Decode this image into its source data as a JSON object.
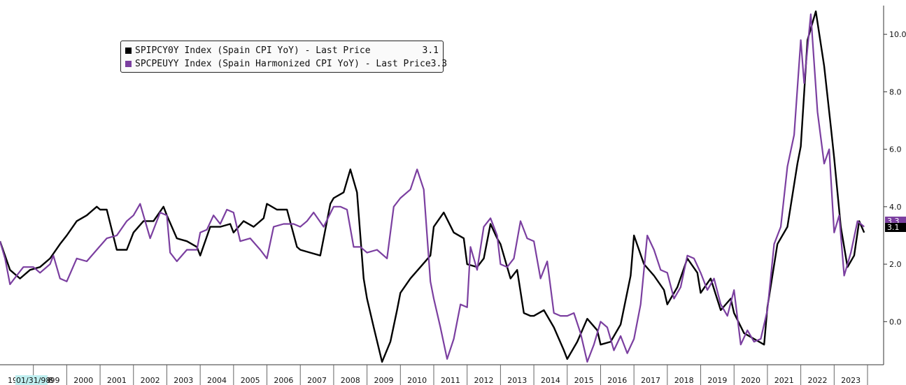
{
  "legend": {
    "entries": [
      {
        "label": "SPIPCY0Y Index (Spain CPI YoY) - Last Price",
        "value": "3.1",
        "color": "#000000"
      },
      {
        "label": "SPCPEUYY Index (Spain Harmonized CPI YoY) - Last Price",
        "value": "3.3",
        "color": "#7b3fa0"
      }
    ]
  },
  "badges": {
    "cpi": {
      "text": "3.1",
      "color": "#000000"
    },
    "hicp": {
      "text": "3.3",
      "color": "#7b3fa0"
    }
  },
  "axis": {
    "cursor_date": "01/31/98",
    "start_label_prefix": "19",
    "start_label_suffix": "8"
  },
  "chart_data": {
    "type": "line",
    "x_unit": "year",
    "xlim": [
      1998.0,
      2024.0
    ],
    "ylim": [
      -1.5,
      11.0
    ],
    "y_axis_side": "right",
    "y_ticks": [
      0.0,
      2.0,
      4.0,
      6.0,
      8.0,
      10.0
    ],
    "y_tick_labels": [
      "0.0",
      "2.0",
      "4.0",
      "6.0",
      "8.0",
      "10.0"
    ],
    "x_ticks": [
      1999,
      2000,
      2001,
      2002,
      2003,
      2004,
      2005,
      2006,
      2007,
      2008,
      2009,
      2010,
      2011,
      2012,
      2013,
      2014,
      2015,
      2016,
      2017,
      2018,
      2019,
      2020,
      2021,
      2022,
      2023
    ],
    "x_tick_labels": [
      "1999",
      "2000",
      "2001",
      "2002",
      "2003",
      "2004",
      "2005",
      "2006",
      "2007",
      "2008",
      "2009",
      "2010",
      "2011",
      "2012",
      "2013",
      "2014",
      "2015",
      "2016",
      "2017",
      "2018",
      "2019",
      "2020",
      "2021",
      "2022",
      "2023"
    ],
    "grid": false,
    "legend_position": "top-left",
    "series": [
      {
        "name": "SPIPCY0Y Index (Spain CPI YoY) - Last Price",
        "color": "#000000",
        "points": [
          [
            1998.0,
            2.8
          ],
          [
            1998.3,
            1.8
          ],
          [
            1998.6,
            1.5
          ],
          [
            1998.9,
            1.8
          ],
          [
            1999.2,
            1.9
          ],
          [
            1999.5,
            2.2
          ],
          [
            1999.8,
            2.7
          ],
          [
            2000.0,
            3.0
          ],
          [
            2000.3,
            3.5
          ],
          [
            2000.6,
            3.7
          ],
          [
            2000.9,
            4.0
          ],
          [
            2001.0,
            3.9
          ],
          [
            2001.2,
            3.9
          ],
          [
            2001.5,
            2.5
          ],
          [
            2001.8,
            2.5
          ],
          [
            2002.0,
            3.1
          ],
          [
            2002.3,
            3.5
          ],
          [
            2002.6,
            3.5
          ],
          [
            2002.9,
            4.0
          ],
          [
            2003.0,
            3.7
          ],
          [
            2003.3,
            2.9
          ],
          [
            2003.6,
            2.8
          ],
          [
            2003.9,
            2.6
          ],
          [
            2004.0,
            2.3
          ],
          [
            2004.3,
            3.3
          ],
          [
            2004.6,
            3.3
          ],
          [
            2004.9,
            3.4
          ],
          [
            2005.0,
            3.1
          ],
          [
            2005.3,
            3.5
          ],
          [
            2005.6,
            3.3
          ],
          [
            2005.9,
            3.6
          ],
          [
            2006.0,
            4.1
          ],
          [
            2006.3,
            3.9
          ],
          [
            2006.6,
            3.9
          ],
          [
            2006.9,
            2.6
          ],
          [
            2007.0,
            2.5
          ],
          [
            2007.3,
            2.4
          ],
          [
            2007.6,
            2.3
          ],
          [
            2007.9,
            4.1
          ],
          [
            2008.0,
            4.3
          ],
          [
            2008.3,
            4.5
          ],
          [
            2008.5,
            5.3
          ],
          [
            2008.7,
            4.5
          ],
          [
            2008.9,
            1.5
          ],
          [
            2009.0,
            0.8
          ],
          [
            2009.2,
            -0.2
          ],
          [
            2009.45,
            -1.4
          ],
          [
            2009.7,
            -0.7
          ],
          [
            2009.9,
            0.4
          ],
          [
            2010.0,
            1.0
          ],
          [
            2010.3,
            1.5
          ],
          [
            2010.6,
            1.9
          ],
          [
            2010.9,
            2.3
          ],
          [
            2011.0,
            3.3
          ],
          [
            2011.3,
            3.8
          ],
          [
            2011.6,
            3.1
          ],
          [
            2011.9,
            2.9
          ],
          [
            2012.0,
            2.0
          ],
          [
            2012.3,
            1.9
          ],
          [
            2012.5,
            2.2
          ],
          [
            2012.7,
            3.4
          ],
          [
            2012.9,
            2.9
          ],
          [
            2013.0,
            2.7
          ],
          [
            2013.3,
            1.5
          ],
          [
            2013.5,
            1.8
          ],
          [
            2013.7,
            0.3
          ],
          [
            2013.9,
            0.2
          ],
          [
            2014.0,
            0.2
          ],
          [
            2014.3,
            0.4
          ],
          [
            2014.6,
            -0.2
          ],
          [
            2014.9,
            -1.0
          ],
          [
            2015.0,
            -1.3
          ],
          [
            2015.3,
            -0.7
          ],
          [
            2015.6,
            0.1
          ],
          [
            2015.9,
            -0.3
          ],
          [
            2016.0,
            -0.8
          ],
          [
            2016.3,
            -0.7
          ],
          [
            2016.6,
            -0.1
          ],
          [
            2016.9,
            1.6
          ],
          [
            2017.0,
            3.0
          ],
          [
            2017.3,
            2.0
          ],
          [
            2017.6,
            1.6
          ],
          [
            2017.9,
            1.1
          ],
          [
            2018.0,
            0.6
          ],
          [
            2018.3,
            1.2
          ],
          [
            2018.6,
            2.2
          ],
          [
            2018.9,
            1.7
          ],
          [
            2019.0,
            1.0
          ],
          [
            2019.3,
            1.5
          ],
          [
            2019.6,
            0.4
          ],
          [
            2019.9,
            0.8
          ],
          [
            2020.0,
            0.3
          ],
          [
            2020.3,
            -0.4
          ],
          [
            2020.6,
            -0.6
          ],
          [
            2020.9,
            -0.8
          ],
          [
            2021.0,
            0.5
          ],
          [
            2021.3,
            2.7
          ],
          [
            2021.6,
            3.3
          ],
          [
            2021.9,
            5.5
          ],
          [
            2022.0,
            6.1
          ],
          [
            2022.2,
            9.8
          ],
          [
            2022.45,
            10.8
          ],
          [
            2022.7,
            8.9
          ],
          [
            2022.9,
            6.8
          ],
          [
            2023.0,
            5.7
          ],
          [
            2023.2,
            3.3
          ],
          [
            2023.4,
            1.9
          ],
          [
            2023.6,
            2.3
          ],
          [
            2023.75,
            3.5
          ],
          [
            2023.9,
            3.1
          ]
        ]
      },
      {
        "name": "SPCPEUYY Index (Spain Harmonized CPI YoY) - Last Price",
        "color": "#7b3fa0",
        "points": [
          [
            1998.0,
            2.8
          ],
          [
            1998.15,
            2.2
          ],
          [
            1998.3,
            1.3
          ],
          [
            1998.5,
            1.6
          ],
          [
            1998.7,
            1.9
          ],
          [
            1999.0,
            1.9
          ],
          [
            1999.2,
            1.7
          ],
          [
            1999.5,
            2.0
          ],
          [
            1999.6,
            2.3
          ],
          [
            1999.8,
            1.5
          ],
          [
            2000.0,
            1.4
          ],
          [
            2000.3,
            2.2
          ],
          [
            2000.6,
            2.1
          ],
          [
            2000.9,
            2.5
          ],
          [
            2001.2,
            2.9
          ],
          [
            2001.5,
            3.0
          ],
          [
            2001.8,
            3.5
          ],
          [
            2002.0,
            3.7
          ],
          [
            2002.2,
            4.1
          ],
          [
            2002.5,
            2.9
          ],
          [
            2002.8,
            3.8
          ],
          [
            2003.0,
            3.7
          ],
          [
            2003.1,
            2.4
          ],
          [
            2003.3,
            2.1
          ],
          [
            2003.6,
            2.5
          ],
          [
            2003.9,
            2.5
          ],
          [
            2004.0,
            3.1
          ],
          [
            2004.2,
            3.2
          ],
          [
            2004.4,
            3.7
          ],
          [
            2004.6,
            3.4
          ],
          [
            2004.8,
            3.9
          ],
          [
            2005.0,
            3.8
          ],
          [
            2005.2,
            2.8
          ],
          [
            2005.5,
            2.9
          ],
          [
            2005.8,
            2.5
          ],
          [
            2006.0,
            2.2
          ],
          [
            2006.2,
            3.3
          ],
          [
            2006.5,
            3.4
          ],
          [
            2006.8,
            3.4
          ],
          [
            2007.0,
            3.3
          ],
          [
            2007.2,
            3.5
          ],
          [
            2007.4,
            3.8
          ],
          [
            2007.7,
            3.3
          ],
          [
            2008.0,
            4.0
          ],
          [
            2008.2,
            4.0
          ],
          [
            2008.4,
            3.9
          ],
          [
            2008.6,
            2.6
          ],
          [
            2008.8,
            2.6
          ],
          [
            2009.0,
            2.4
          ],
          [
            2009.3,
            2.5
          ],
          [
            2009.6,
            2.2
          ],
          [
            2009.8,
            4.0
          ],
          [
            2010.0,
            4.3
          ],
          [
            2010.3,
            4.6
          ],
          [
            2010.5,
            5.3
          ],
          [
            2010.7,
            4.6
          ],
          [
            2010.9,
            1.4
          ],
          [
            2011.0,
            0.8
          ],
          [
            2011.2,
            -0.2
          ],
          [
            2011.4,
            -1.3
          ],
          [
            2011.6,
            -0.6
          ],
          [
            2011.8,
            0.6
          ],
          [
            2012.0,
            0.5
          ],
          [
            2012.1,
            2.6
          ],
          [
            2012.3,
            1.8
          ],
          [
            2012.5,
            3.3
          ],
          [
            2012.7,
            3.6
          ],
          [
            2012.9,
            3.0
          ],
          [
            2013.0,
            2.0
          ],
          [
            2013.2,
            1.9
          ],
          [
            2013.4,
            2.2
          ],
          [
            2013.6,
            3.5
          ],
          [
            2013.8,
            2.9
          ],
          [
            2014.0,
            2.8
          ],
          [
            2014.2,
            1.5
          ],
          [
            2014.4,
            2.1
          ],
          [
            2014.6,
            0.3
          ],
          [
            2014.8,
            0.2
          ],
          [
            2015.0,
            0.2
          ],
          [
            2015.2,
            0.3
          ],
          [
            2015.4,
            -0.4
          ],
          [
            2015.6,
            -1.4
          ],
          [
            2015.8,
            -0.8
          ],
          [
            2016.0,
            0.0
          ],
          [
            2016.2,
            -0.2
          ],
          [
            2016.4,
            -1.0
          ],
          [
            2016.6,
            -0.5
          ],
          [
            2016.8,
            -1.1
          ],
          [
            2017.0,
            -0.6
          ],
          [
            2017.2,
            0.6
          ],
          [
            2017.4,
            3.0
          ],
          [
            2017.6,
            2.5
          ],
          [
            2017.8,
            1.8
          ],
          [
            2018.0,
            1.7
          ],
          [
            2018.2,
            0.8
          ],
          [
            2018.4,
            1.2
          ],
          [
            2018.6,
            2.3
          ],
          [
            2018.8,
            2.2
          ],
          [
            2019.0,
            1.7
          ],
          [
            2019.2,
            1.1
          ],
          [
            2019.4,
            1.5
          ],
          [
            2019.6,
            0.6
          ],
          [
            2019.8,
            0.2
          ],
          [
            2020.0,
            1.1
          ],
          [
            2020.2,
            -0.8
          ],
          [
            2020.4,
            -0.3
          ],
          [
            2020.6,
            -0.7
          ],
          [
            2020.8,
            -0.6
          ],
          [
            2021.0,
            0.4
          ],
          [
            2021.2,
            2.7
          ],
          [
            2021.4,
            3.3
          ],
          [
            2021.6,
            5.4
          ],
          [
            2021.8,
            6.5
          ],
          [
            2022.0,
            9.8
          ],
          [
            2022.1,
            8.3
          ],
          [
            2022.3,
            10.7
          ],
          [
            2022.5,
            7.3
          ],
          [
            2022.7,
            5.5
          ],
          [
            2022.85,
            6.0
          ],
          [
            2023.0,
            3.1
          ],
          [
            2023.15,
            3.7
          ],
          [
            2023.3,
            1.6
          ],
          [
            2023.5,
            2.4
          ],
          [
            2023.7,
            3.5
          ],
          [
            2023.9,
            3.3
          ]
        ]
      }
    ]
  }
}
